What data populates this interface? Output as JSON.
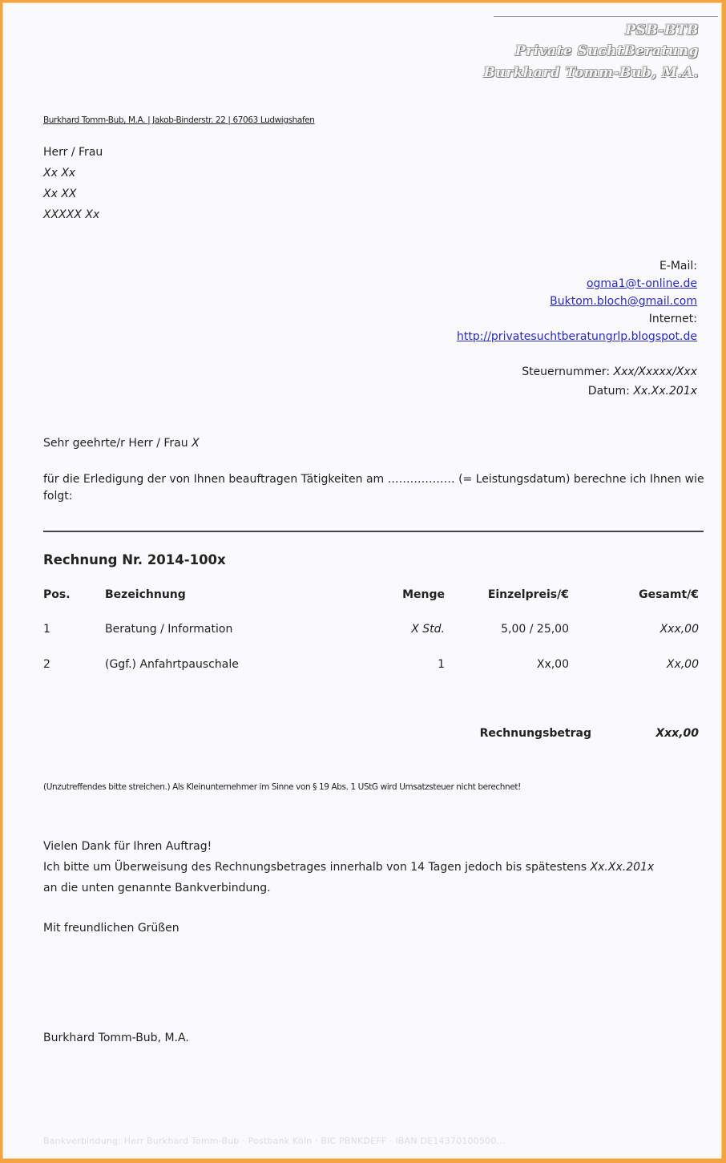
{
  "letterhead": {
    "line1": "PSB-BTB",
    "line2": "Private SuchtBeratung",
    "line3": "Burkhard Tomm-Bub, M.A."
  },
  "sender_line": "Burkhard Tomm-Bub, M.A. | Jakob-Binderstr. 22 | 67063 Ludwigshafen",
  "recipient": {
    "salutation": "Herr / Frau",
    "name": "Xx Xx",
    "street": "Xx XX",
    "city": "XXXXX Xx"
  },
  "contact": {
    "email_label": "E-Mail:",
    "email1": "ogma1@t-online.de",
    "email2": "Buktom.bloch@gmail.com",
    "internet_label": "Internet:",
    "website": "http://privatesuchtberatungrlp.blogspot.de"
  },
  "meta": {
    "tax_label": "Steuernummer:",
    "tax_value": "Xxx/Xxxxx/Xxx",
    "date_label": "Datum:",
    "date_value": "Xx.Xx.201x"
  },
  "greeting": {
    "text": "Sehr geehrte/r Herr / Frau",
    "name": "X"
  },
  "intro": "für die Erledigung der von Ihnen beauftragen Tätigkeiten am ……………… (= Leistungsdatum) berechne ich Ihnen wie folgt:",
  "invoice_title": "Rechnung Nr. 2014-100x",
  "table": {
    "headers": [
      "Pos.",
      "Bezeichnung",
      "Menge",
      "Einzelpreis/€",
      "Gesamt/€"
    ],
    "rows": [
      [
        "1",
        "Beratung / Information",
        "X Std.",
        "5,00 / 25,00",
        "Xxx,00"
      ],
      [
        "2",
        "(Ggf.) Anfahrtpauschale",
        "1",
        "Xx,00",
        "Xx,00"
      ]
    ],
    "total_label": "Rechnungsbetrag",
    "total_value": "Xxx,00"
  },
  "note": "(Unzutreffendes bitte streichen.) Als Kleinunternehmer im Sinne von § 19 Abs. 1 UStG wird Umsatzsteuer nicht berechnet!",
  "closing": {
    "thanks": "Vielen Dank für Ihren Auftrag!",
    "payment1": "Ich bitte um Überweisung des Rechnungsbetrages innerhalb von 14 Tagen jedoch bis spätestens",
    "payment_date": "Xx.Xx.201x",
    "payment2": "an die unten genannte Bankverbindung.",
    "regards": "Mit freundlichen Grüßen",
    "signature": "Burkhard Tomm-Bub, M.A."
  },
  "footer": "Bankverbindung: Herr Burkhard Tomm-Bub · Postbank Köln · BIC PBNKDEFF · IBAN DE14370100500..."
}
